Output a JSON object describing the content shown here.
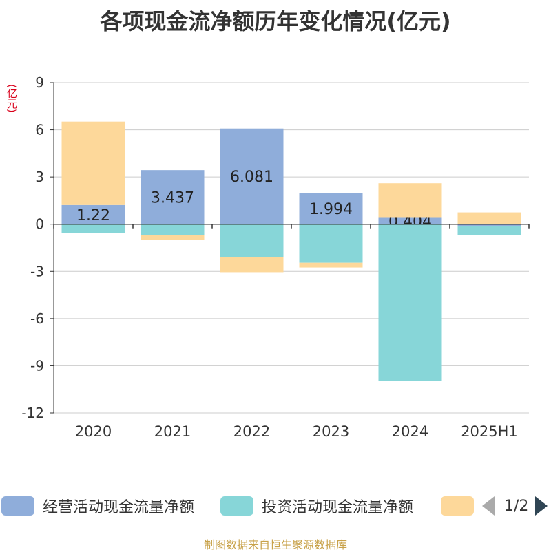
{
  "title": "各项现金流净额历年变化情况(亿元)",
  "unit_label": "(亿元)",
  "source_text": "制图数据来自恒生聚源数据库",
  "legend": {
    "items": [
      {
        "label": "经营活动现金流量净额",
        "color": "#8fadda"
      },
      {
        "label": "投资活动现金流量净额",
        "color": "#87d6d8"
      },
      {
        "label": "",
        "color": "#fdd89a"
      }
    ],
    "page_text": "1/2"
  },
  "chart_data": {
    "type": "bar",
    "stacked": true,
    "categories": [
      "2020",
      "2021",
      "2022",
      "2023",
      "2024",
      "2025H1"
    ],
    "ylim": [
      -12,
      9
    ],
    "yticks": [
      9,
      6,
      3,
      0,
      -3,
      -6,
      -9,
      -12
    ],
    "ytick_labels": [
      "9",
      "6",
      "3",
      "0",
      "-3",
      "-6",
      "-9",
      "-12"
    ],
    "grid": true,
    "legend_position": "bottom",
    "series": [
      {
        "name": "经营活动现金流量净额",
        "color": "#8fadda",
        "values": [
          1.22,
          3.437,
          6.081,
          1.994,
          0.404,
          -0.1
        ],
        "labels": [
          "1.22",
          "3.437",
          "6.081",
          "1.994",
          "0.404",
          ""
        ]
      },
      {
        "name": "投资活动现金流量净额",
        "color": "#87d6d8",
        "values": [
          -0.55,
          -0.7,
          -2.1,
          -2.45,
          -9.95,
          -0.6
        ],
        "labels": [
          "",
          "",
          "",
          "",
          "",
          ""
        ]
      },
      {
        "name": "",
        "color": "#fdd89a",
        "values": [
          5.3,
          -0.3,
          -0.95,
          -0.3,
          2.2,
          0.75
        ],
        "labels": [
          "",
          "",
          "",
          "",
          "",
          ""
        ]
      }
    ]
  }
}
